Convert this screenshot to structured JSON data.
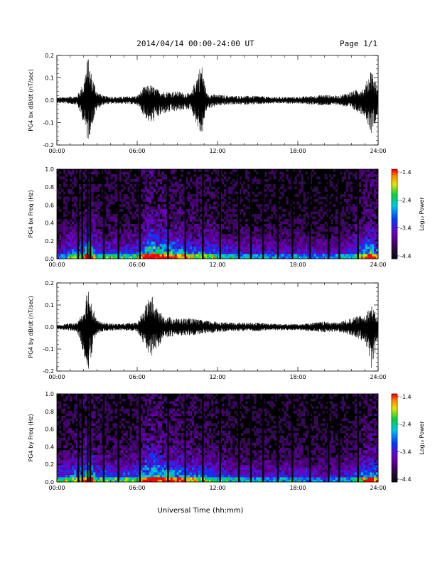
{
  "header": {
    "title": "2014/04/14  00:00-24:00 UT",
    "page": "Page 1/1"
  },
  "xlabel": "Universal Time (hh:mm)",
  "colorbar": {
    "label": "Log₁₀ Power",
    "ticks": [
      "-1.4",
      "-2.4",
      "-3.4",
      "-4.4"
    ],
    "range": [
      -4.4,
      -1.4
    ]
  },
  "chart_data": [
    {
      "type": "line",
      "ylabel": "PG4 bx dB/dt (nT/sec)",
      "xlim": [
        "00:00",
        "24:00"
      ],
      "x_ticks": [
        "00:00",
        "06:00",
        "12:00",
        "18:00",
        "24:00"
      ],
      "ylim": [
        -0.2,
        0.2
      ],
      "y_ticks": [
        "0.2",
        "0.1",
        "0.0",
        "-0.1",
        "-0.2"
      ],
      "color": "#000000",
      "envelope": {
        "hours": [
          0,
          1.5,
          2.0,
          2.3,
          2.6,
          3.0,
          3.5,
          4.5,
          6.0,
          6.5,
          7.0,
          7.5,
          8.0,
          9.0,
          10.0,
          10.8,
          11.2,
          12.0,
          13.0,
          14.0,
          15.0,
          16.0,
          17.0,
          18.0,
          19.0,
          20.0,
          21.0,
          22.0,
          23.0,
          23.5,
          24.0
        ],
        "max": [
          0.012,
          0.02,
          0.08,
          0.2,
          0.12,
          0.04,
          0.02,
          0.015,
          0.02,
          0.06,
          0.07,
          0.05,
          0.04,
          0.04,
          0.03,
          0.17,
          0.03,
          0.025,
          0.02,
          0.02,
          0.02,
          0.015,
          0.015,
          0.015,
          0.02,
          0.025,
          0.02,
          0.04,
          0.06,
          0.15,
          0.05
        ],
        "min": [
          -0.012,
          -0.02,
          -0.1,
          -0.19,
          -0.12,
          -0.04,
          -0.02,
          -0.015,
          -0.02,
          -0.07,
          -0.11,
          -0.08,
          -0.06,
          -0.05,
          -0.04,
          -0.17,
          -0.04,
          -0.025,
          -0.02,
          -0.02,
          -0.02,
          -0.015,
          -0.015,
          -0.015,
          -0.02,
          -0.025,
          -0.02,
          -0.04,
          -0.07,
          -0.15,
          -0.06
        ]
      }
    },
    {
      "type": "heatmap",
      "ylabel": "PG4 bx Freq (Hz)",
      "xlim": [
        "00:00",
        "24:00"
      ],
      "x_ticks": [
        "00:00",
        "06:00",
        "12:00",
        "18:00",
        "24:00"
      ],
      "ylim": [
        0.0,
        1.0
      ],
      "y_ticks": [
        "1.0",
        "0.8",
        "0.6",
        "0.4",
        "0.2",
        "0.0"
      ],
      "value_label": "Log₁₀ Power",
      "zlim": [
        -4.4,
        -1.4
      ],
      "data_gaps_hours": [
        1.6,
        1.9,
        2.3,
        2.5,
        3.5,
        4.6,
        6.2,
        8.3,
        9.6,
        10.9,
        12.2,
        13.6,
        14.5,
        15.4,
        16.5,
        17.6,
        18.9,
        20.3,
        21.1,
        22.5
      ],
      "activity_hours": [
        0,
        2,
        2.3,
        3,
        6,
        7,
        8,
        10,
        11,
        13,
        16,
        18,
        20,
        22,
        23.5,
        24
      ],
      "activity_level": [
        0.3,
        0.7,
        1.0,
        0.5,
        0.5,
        1.0,
        0.8,
        0.6,
        0.6,
        0.45,
        0.4,
        0.4,
        0.35,
        0.45,
        0.85,
        0.6
      ]
    },
    {
      "type": "line",
      "ylabel": "PG4 by dB/dt (nT/sec)",
      "xlim": [
        "00:00",
        "24:00"
      ],
      "x_ticks": [
        "00:00",
        "06:00",
        "12:00",
        "18:00",
        "24:00"
      ],
      "ylim": [
        -0.2,
        0.2
      ],
      "y_ticks": [
        "0.2",
        "0.1",
        "0.0",
        "-0.1",
        "-0.2"
      ],
      "color": "#000000",
      "envelope": {
        "hours": [
          0,
          1.5,
          2.0,
          2.3,
          2.6,
          3.0,
          3.5,
          4.5,
          6.0,
          6.5,
          7.0,
          7.5,
          8.0,
          9.0,
          10.0,
          11.0,
          12.0,
          13.0,
          14.0,
          15.0,
          16.0,
          17.0,
          18.0,
          19.0,
          20.0,
          21.0,
          22.0,
          23.0,
          23.5,
          24.0
        ],
        "max": [
          0.01,
          0.02,
          0.08,
          0.2,
          0.12,
          0.03,
          0.02,
          0.015,
          0.02,
          0.08,
          0.16,
          0.08,
          0.05,
          0.04,
          0.04,
          0.03,
          0.025,
          0.02,
          0.02,
          0.02,
          0.015,
          0.015,
          0.015,
          0.02,
          0.025,
          0.02,
          0.04,
          0.06,
          0.1,
          0.04
        ],
        "min": [
          -0.01,
          -0.02,
          -0.12,
          -0.21,
          -0.13,
          -0.03,
          -0.02,
          -0.015,
          -0.02,
          -0.08,
          -0.14,
          -0.1,
          -0.05,
          -0.04,
          -0.04,
          -0.03,
          -0.025,
          -0.02,
          -0.02,
          -0.02,
          -0.015,
          -0.015,
          -0.015,
          -0.02,
          -0.025,
          -0.02,
          -0.04,
          -0.07,
          -0.19,
          -0.05
        ]
      }
    },
    {
      "type": "heatmap",
      "ylabel": "PG4 by Freq (Hz)",
      "xlim": [
        "00:00",
        "24:00"
      ],
      "x_ticks": [
        "00:00",
        "06:00",
        "12:00",
        "18:00",
        "24:00"
      ],
      "ylim": [
        0.0,
        1.0
      ],
      "y_ticks": [
        "1.0",
        "0.8",
        "0.6",
        "0.4",
        "0.2",
        "0.0"
      ],
      "value_label": "Log₁₀ Power",
      "zlim": [
        -4.4,
        -1.4
      ],
      "data_gaps_hours": [
        1.6,
        1.9,
        2.3,
        2.5,
        3.5,
        4.6,
        6.2,
        8.3,
        9.6,
        10.9,
        12.2,
        13.6,
        14.5,
        15.4,
        16.5,
        17.6,
        18.9,
        20.3,
        21.1,
        22.5
      ],
      "activity_hours": [
        0,
        2,
        2.3,
        3,
        6,
        7,
        8,
        10,
        11,
        13,
        16,
        18,
        20,
        22,
        23.5,
        24
      ],
      "activity_level": [
        0.45,
        0.75,
        1.0,
        0.55,
        0.55,
        0.95,
        0.8,
        0.65,
        0.6,
        0.45,
        0.4,
        0.45,
        0.35,
        0.45,
        0.8,
        0.6
      ]
    }
  ]
}
